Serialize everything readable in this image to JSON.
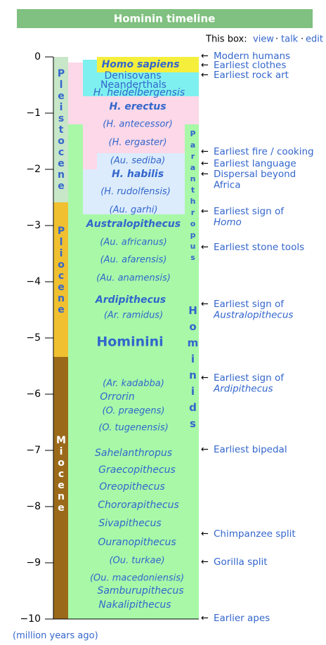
{
  "header": {
    "title": "Hominin timeline",
    "box_label": "This box:",
    "links": [
      "view",
      "talk",
      "edit"
    ]
  },
  "axis": {
    "ticks": [
      "0",
      "−1",
      "−2",
      "−3",
      "−4",
      "−5",
      "−6",
      "−7",
      "−8",
      "−9",
      "−10"
    ],
    "unit": "(million years ago)"
  },
  "epochs": [
    "Pleistocene",
    "Pliocene",
    "Miocene"
  ],
  "groups": [
    "Paranthropus",
    "Hominids"
  ],
  "taxa": [
    "Homo sapiens",
    "Denisovans",
    "Neanderthals",
    "H. heidelbergensis",
    "H. erectus",
    "(H. antecessor)",
    "(H. ergaster)",
    "(Au. sediba)",
    "H. habilis",
    "(H. rudolfensis)",
    "(Au. garhi)",
    "Australopithecus",
    "(Au. africanus)",
    "(Au. afarensis)",
    "(Au. anamensis)",
    "Ardipithecus",
    "(Ar. ramidus)",
    "Hominini",
    "(Ar. kadabba)",
    "Orrorin",
    "(O. praegens)",
    "(O. tugenensis)",
    "Sahelanthropus",
    "Graecopithecus",
    "Oreopithecus",
    "Chororapithecus",
    "Sivapithecus",
    "Ouranopithecus",
    "(Ou. turkae)",
    "(Ou. macedoniensis)",
    "Samburupithecus",
    "Nakalipithecus"
  ],
  "events": [
    {
      "lines": [
        "Modern humans"
      ]
    },
    {
      "lines": [
        "Earliest clothes"
      ]
    },
    {
      "lines": [
        "Earliest rock art"
      ]
    },
    {
      "lines": [
        "Earliest fire / cooking"
      ]
    },
    {
      "lines": [
        "Earliest language"
      ]
    },
    {
      "lines": [
        "Dispersal beyond",
        "Africa"
      ]
    },
    {
      "lines": [
        "Earliest sign of",
        "Homo"
      ]
    },
    {
      "lines": [
        "Earliest stone tools"
      ]
    },
    {
      "lines": [
        "Earliest sign of",
        "Australopithecus"
      ]
    },
    {
      "lines": [
        "Earliest sign of",
        "Ardipithecus"
      ]
    },
    {
      "lines": [
        "Earliest bipedal"
      ]
    },
    {
      "lines": [
        "Chimpanzee split"
      ]
    },
    {
      "lines": [
        "Gorilla split"
      ]
    },
    {
      "lines": [
        "Earlier apes"
      ]
    }
  ]
}
